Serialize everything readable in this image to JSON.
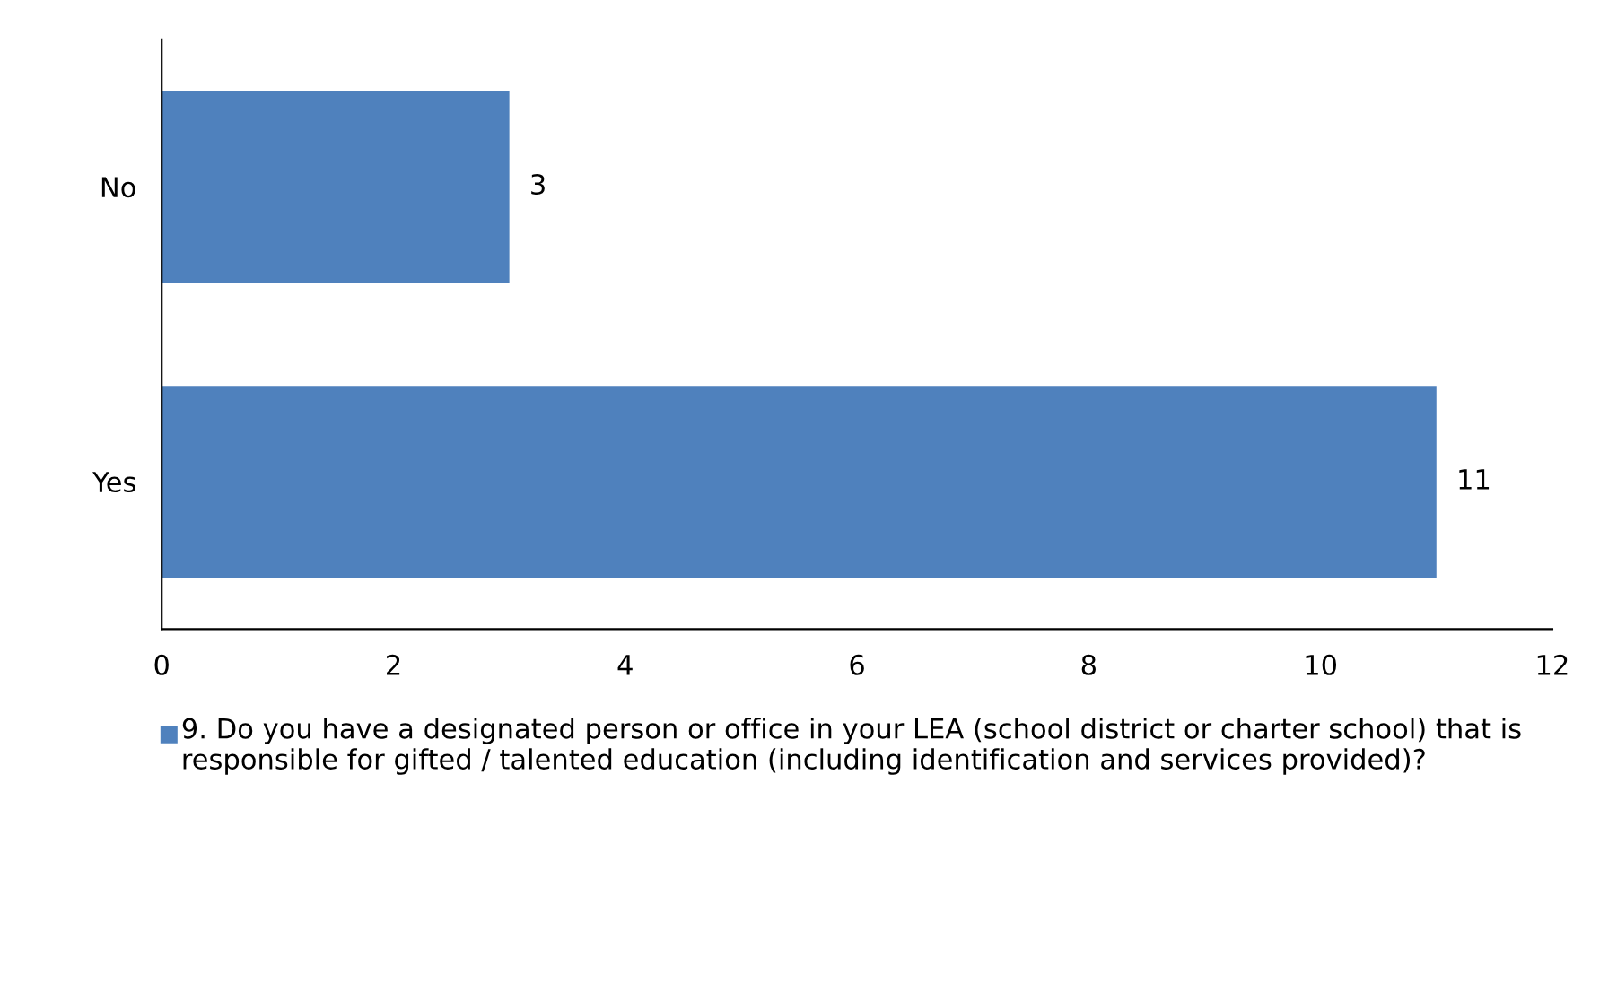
{
  "chart_data": {
    "type": "bar",
    "orientation": "horizontal",
    "categories": [
      "No",
      "Yes"
    ],
    "series": [
      {
        "name": "9. Do you have a designated person or office in your LEA (school district or charter school) that is responsible for gifted / talented education (including identification and services provided)?",
        "color": "#4f81bd",
        "values": [
          3,
          11
        ]
      }
    ],
    "xlim": [
      0,
      12
    ],
    "xticks": [
      0,
      2,
      4,
      6,
      8,
      10,
      12
    ],
    "data_labels": true,
    "grid": false,
    "legend": "bottom"
  }
}
